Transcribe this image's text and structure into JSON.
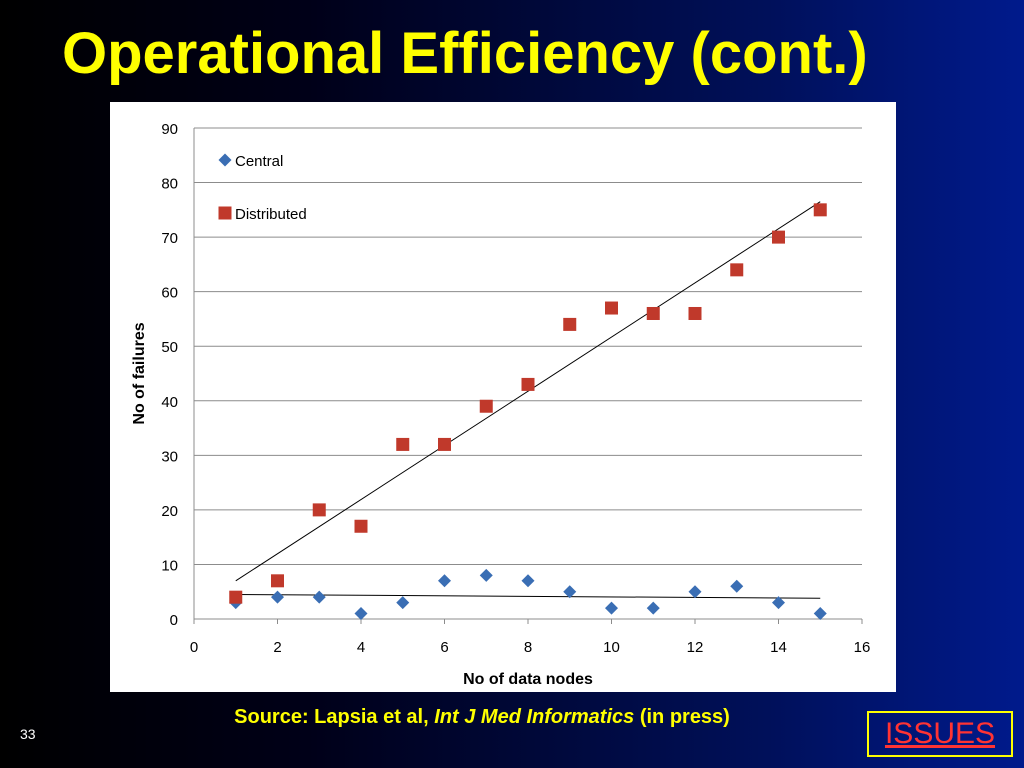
{
  "slide": {
    "title": "Operational Efficiency (cont.)",
    "source_prefix": "Source: Lapsia et al, ",
    "source_journal": "Int J Med Informatics",
    "source_suffix": " (in press)",
    "page_number": "33",
    "issues_link": "ISSUES"
  },
  "colors": {
    "title": "#ffff00",
    "central": "#3a6eb4",
    "distributed": "#c0392b",
    "issues_text": "#ff3333",
    "issues_border": "#ffff00"
  },
  "chart_data": {
    "type": "scatter",
    "xlabel": "No of data nodes",
    "ylabel": "No of failures",
    "xlim": [
      0,
      16
    ],
    "ylim": [
      0,
      90
    ],
    "x_ticks": [
      "0",
      "2",
      "4",
      "6",
      "8",
      "10",
      "12",
      "14",
      "16"
    ],
    "y_ticks": [
      "0",
      "10",
      "20",
      "30",
      "40",
      "50",
      "60",
      "70",
      "80",
      "90"
    ],
    "grid": "horizontal",
    "legend_position": "top-left inside",
    "series": [
      {
        "name": "Central",
        "marker": "diamond",
        "color": "#3a6eb4",
        "x": [
          1,
          2,
          3,
          4,
          5,
          6,
          7,
          8,
          9,
          10,
          11,
          12,
          13,
          14,
          15
        ],
        "y": [
          3,
          4,
          4,
          1,
          3,
          7,
          8,
          7,
          5,
          2,
          2,
          5,
          6,
          3,
          1
        ],
        "trendline": {
          "from": [
            1,
            4.5
          ],
          "to": [
            15,
            3.8
          ]
        }
      },
      {
        "name": "Distributed",
        "marker": "square",
        "color": "#c0392b",
        "x": [
          1,
          2,
          3,
          4,
          5,
          6,
          7,
          8,
          9,
          10,
          11,
          12,
          13,
          14,
          15
        ],
        "y": [
          4,
          7,
          20,
          17,
          32,
          32,
          39,
          43,
          54,
          57,
          56,
          56,
          64,
          70,
          75
        ],
        "trendline": {
          "from": [
            1,
            7
          ],
          "to": [
            15,
            76.5
          ]
        }
      }
    ]
  }
}
